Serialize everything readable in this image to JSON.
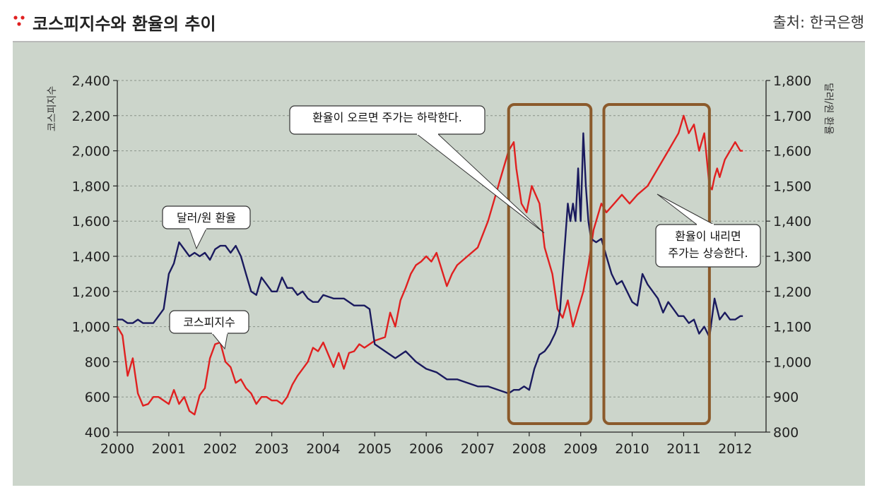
{
  "header": {
    "title": "코스피지수와 환율의 추이",
    "source": "출처: 한국은행"
  },
  "colors": {
    "background": "#ccd5cb",
    "kospi": "#e02020",
    "fx": "#1a1a5e",
    "highlight_box": "#8b5a2b",
    "bullet": "#e02020"
  },
  "chart_data": {
    "type": "line",
    "ylabel": "코스피지수",
    "y2label": "달러/원 환율",
    "ylim": [
      400,
      2400
    ],
    "y2lim": [
      800,
      1800
    ],
    "xlim": [
      2000,
      2012.6
    ],
    "x_tick_labels": [
      "2000",
      "2001",
      "2002",
      "2003",
      "2004",
      "2005",
      "2006",
      "2007",
      "2008",
      "2009",
      "2010",
      "2011",
      "2012"
    ],
    "y_tick_labels": [
      "400",
      "600",
      "800",
      "1,000",
      "1,200",
      "1,400",
      "1,600",
      "1,800",
      "2,000",
      "2,200",
      "2,400"
    ],
    "y2_tick_labels": [
      "800",
      "900",
      "1,000",
      "1,100",
      "1,200",
      "1,300",
      "1,400",
      "1,500",
      "1,600",
      "1,700",
      "1,800"
    ],
    "grid": true,
    "series": [
      {
        "name": "코스피지수",
        "axis": "left",
        "x": [
          2000.0,
          2000.1,
          2000.2,
          2000.3,
          2000.4,
          2000.5,
          2000.6,
          2000.7,
          2000.8,
          2000.9,
          2001.0,
          2001.1,
          2001.2,
          2001.3,
          2001.4,
          2001.5,
          2001.6,
          2001.7,
          2001.8,
          2001.9,
          2002.0,
          2002.1,
          2002.2,
          2002.3,
          2002.4,
          2002.5,
          2002.6,
          2002.7,
          2002.8,
          2002.9,
          2003.0,
          2003.1,
          2003.2,
          2003.3,
          2003.4,
          2003.5,
          2003.6,
          2003.7,
          2003.8,
          2003.9,
          2004.0,
          2004.2,
          2004.3,
          2004.4,
          2004.5,
          2004.6,
          2004.7,
          2004.8,
          2004.9,
          2005.0,
          2005.2,
          2005.3,
          2005.4,
          2005.5,
          2005.6,
          2005.7,
          2005.8,
          2005.9,
          2006.0,
          2006.1,
          2006.2,
          2006.4,
          2006.5,
          2006.6,
          2006.8,
          2007.0,
          2007.2,
          2007.4,
          2007.5,
          2007.6,
          2007.7,
          2007.75,
          2007.85,
          2007.95,
          2008.05,
          2008.2,
          2008.3,
          2008.45,
          2008.55,
          2008.65,
          2008.75,
          2008.85,
          2008.95,
          2009.05,
          2009.15,
          2009.25,
          2009.4,
          2009.5,
          2009.65,
          2009.8,
          2009.95,
          2010.1,
          2010.3,
          2010.5,
          2010.7,
          2010.9,
          2011.0,
          2011.1,
          2011.2,
          2011.3,
          2011.4,
          2011.5,
          2011.55,
          2011.6,
          2011.65,
          2011.7,
          2011.8,
          2011.9,
          2012.0,
          2012.1,
          2012.15
        ],
        "values": [
          1000,
          950,
          720,
          820,
          620,
          550,
          560,
          600,
          600,
          580,
          560,
          640,
          560,
          600,
          520,
          500,
          610,
          650,
          820,
          900,
          910,
          800,
          770,
          680,
          700,
          650,
          620,
          560,
          600,
          600,
          580,
          580,
          560,
          600,
          670,
          720,
          760,
          800,
          880,
          860,
          910,
          770,
          850,
          760,
          850,
          860,
          900,
          880,
          900,
          920,
          940,
          1080,
          1000,
          1150,
          1220,
          1300,
          1350,
          1370,
          1400,
          1370,
          1420,
          1230,
          1300,
          1350,
          1400,
          1450,
          1600,
          1800,
          1900,
          2000,
          2050,
          1900,
          1700,
          1650,
          1800,
          1700,
          1450,
          1300,
          1100,
          1050,
          1150,
          1000,
          1100,
          1200,
          1350,
          1550,
          1700,
          1650,
          1700,
          1750,
          1700,
          1750,
          1800,
          1900,
          2000,
          2100,
          2200,
          2100,
          2150,
          2000,
          2100,
          1800,
          1780,
          1850,
          1900,
          1850,
          1950,
          2000,
          2050,
          2000,
          2000
        ]
      },
      {
        "name": "달러/원 환율",
        "axis": "right",
        "x": [
          2000.0,
          2000.1,
          2000.2,
          2000.3,
          2000.4,
          2000.5,
          2000.6,
          2000.7,
          2000.8,
          2000.9,
          2001.0,
          2001.1,
          2001.2,
          2001.3,
          2001.4,
          2001.5,
          2001.6,
          2001.7,
          2001.8,
          2001.9,
          2002.0,
          2002.1,
          2002.2,
          2002.3,
          2002.4,
          2002.5,
          2002.6,
          2002.7,
          2002.8,
          2002.9,
          2003.0,
          2003.1,
          2003.2,
          2003.3,
          2003.4,
          2003.5,
          2003.6,
          2003.7,
          2003.8,
          2003.9,
          2004.0,
          2004.2,
          2004.4,
          2004.6,
          2004.8,
          2004.9,
          2005.0,
          2005.2,
          2005.4,
          2005.6,
          2005.8,
          2006.0,
          2006.2,
          2006.4,
          2006.6,
          2006.8,
          2007.0,
          2007.2,
          2007.4,
          2007.6,
          2007.7,
          2007.8,
          2007.9,
          2008.0,
          2008.1,
          2008.2,
          2008.3,
          2008.4,
          2008.5,
          2008.55,
          2008.6,
          2008.65,
          2008.7,
          2008.75,
          2008.8,
          2008.85,
          2008.9,
          2008.95,
          2009.0,
          2009.05,
          2009.1,
          2009.15,
          2009.2,
          2009.3,
          2009.4,
          2009.5,
          2009.6,
          2009.7,
          2009.8,
          2009.9,
          2010.0,
          2010.1,
          2010.2,
          2010.3,
          2010.4,
          2010.5,
          2010.6,
          2010.7,
          2010.8,
          2010.9,
          2011.0,
          2011.1,
          2011.2,
          2011.3,
          2011.4,
          2011.5,
          2011.6,
          2011.7,
          2011.8,
          2011.9,
          2012.0,
          2012.1,
          2012.15
        ],
        "values": [
          1120,
          1120,
          1110,
          1110,
          1120,
          1110,
          1110,
          1110,
          1130,
          1150,
          1250,
          1280,
          1340,
          1320,
          1300,
          1310,
          1300,
          1310,
          1290,
          1320,
          1330,
          1330,
          1310,
          1330,
          1300,
          1250,
          1200,
          1190,
          1240,
          1220,
          1200,
          1200,
          1240,
          1210,
          1210,
          1190,
          1200,
          1180,
          1170,
          1170,
          1190,
          1180,
          1180,
          1160,
          1160,
          1150,
          1050,
          1030,
          1010,
          1030,
          1000,
          980,
          970,
          950,
          950,
          940,
          930,
          930,
          920,
          910,
          920,
          920,
          930,
          920,
          980,
          1020,
          1030,
          1050,
          1080,
          1100,
          1150,
          1250,
          1350,
          1450,
          1400,
          1450,
          1400,
          1550,
          1400,
          1650,
          1500,
          1400,
          1350,
          1340,
          1350,
          1300,
          1250,
          1220,
          1230,
          1200,
          1170,
          1160,
          1250,
          1220,
          1200,
          1180,
          1140,
          1170,
          1150,
          1130,
          1130,
          1110,
          1120,
          1080,
          1100,
          1070,
          1180,
          1120,
          1140,
          1120,
          1120,
          1130,
          1130
        ]
      }
    ],
    "callouts": [
      {
        "id": "fx",
        "lines": [
          "달러/원 환율"
        ]
      },
      {
        "id": "kospi",
        "lines": [
          "코스피지수"
        ]
      },
      {
        "id": "rise",
        "lines": [
          "환율이 오르면 주가는 하락한다."
        ]
      },
      {
        "id": "fall",
        "lines": [
          "환율이 내리면",
          "주가는 상승한다."
        ]
      }
    ],
    "highlight_ranges": [
      [
        2007.6,
        2009.2
      ],
      [
        2009.45,
        2011.5
      ]
    ]
  }
}
